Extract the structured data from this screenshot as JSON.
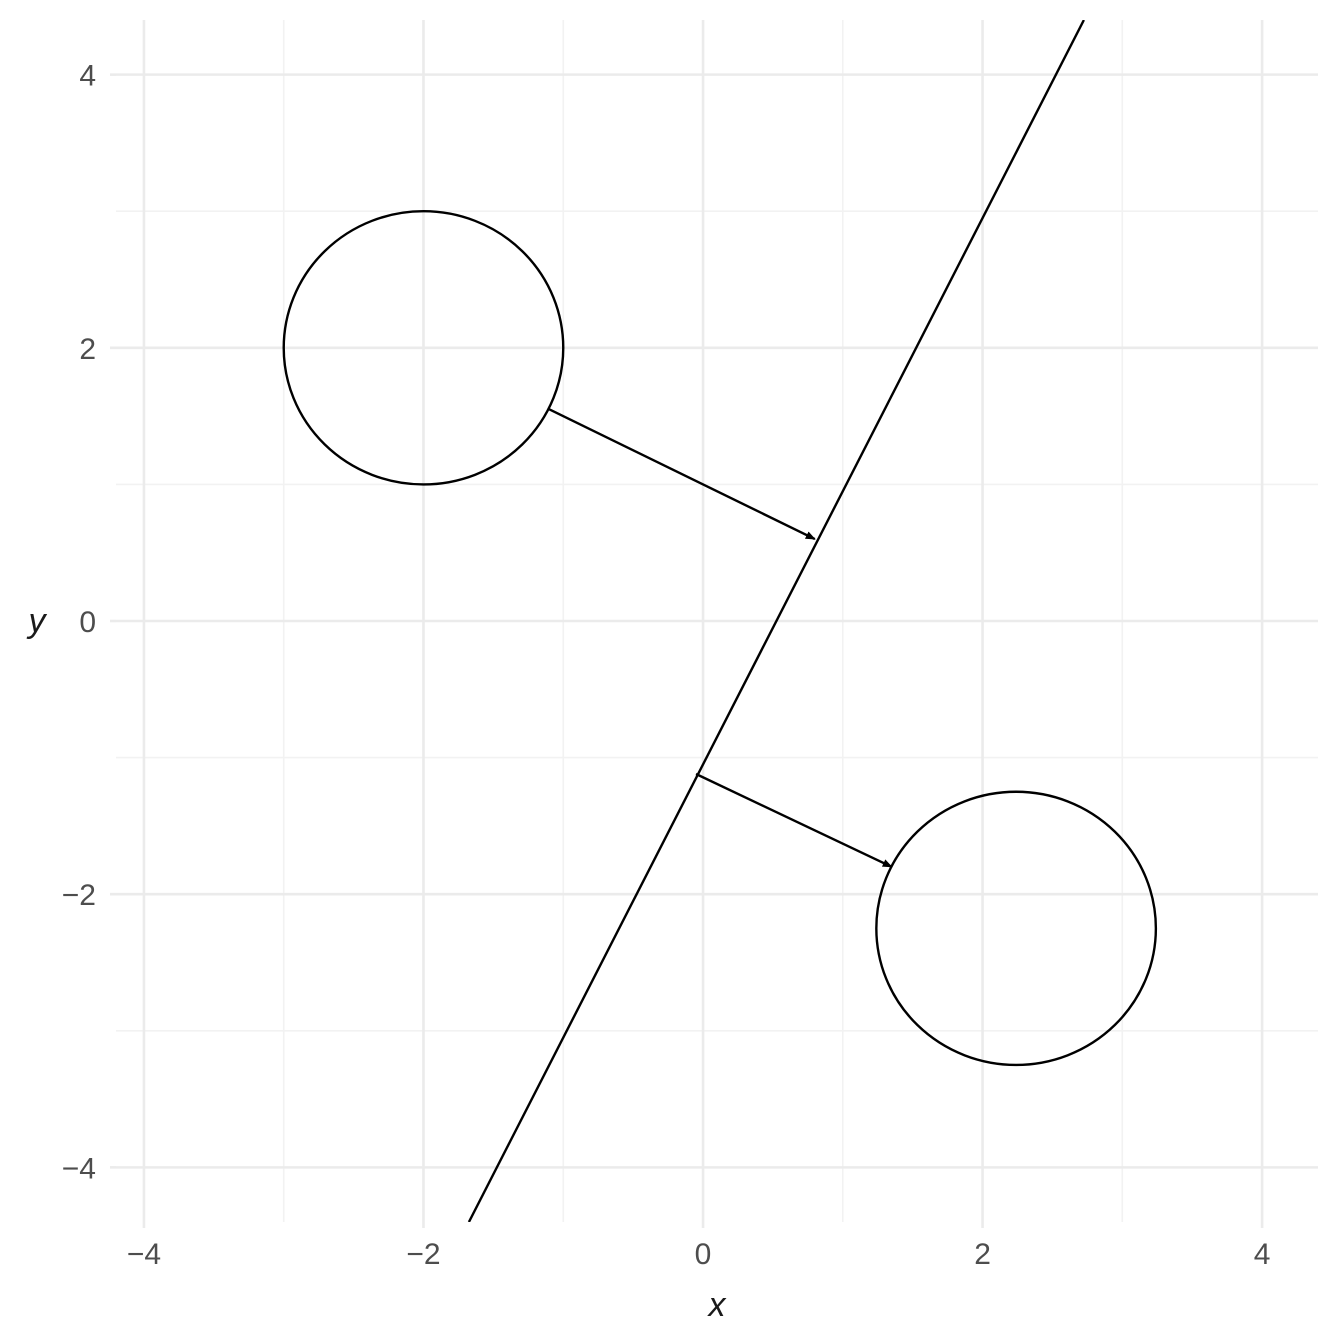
{
  "chart_data": {
    "type": "geometric-diagram",
    "xlabel": "x",
    "ylabel": "y",
    "xlim": [
      -4.2,
      4.4
    ],
    "ylim": [
      -4.4,
      4.4
    ],
    "x_ticks": [
      -4,
      -2,
      0,
      2,
      4
    ],
    "y_ticks": [
      -4,
      -2,
      0,
      2,
      4
    ],
    "x_tick_labels": [
      "−4",
      "−2",
      "0",
      "2",
      "4"
    ],
    "y_tick_labels": [
      "−4",
      "−2",
      "0",
      "2",
      "4"
    ],
    "x_minor": [
      -3,
      -1,
      1,
      3
    ],
    "y_minor": [
      -3,
      -1,
      1,
      3
    ],
    "grid": true,
    "line": {
      "slope": 2,
      "intercept": -1.05
    },
    "circles": [
      {
        "cx": -2,
        "cy": 2,
        "r": 1
      },
      {
        "cx": 2.24,
        "cy": -2.25,
        "r": 1
      }
    ],
    "arrows": [
      {
        "from": [
          -1.1,
          1.55
        ],
        "to": [
          0.8,
          0.6
        ]
      },
      {
        "from": [
          -0.05,
          -1.12
        ],
        "to": [
          1.35,
          -1.8
        ]
      }
    ]
  }
}
